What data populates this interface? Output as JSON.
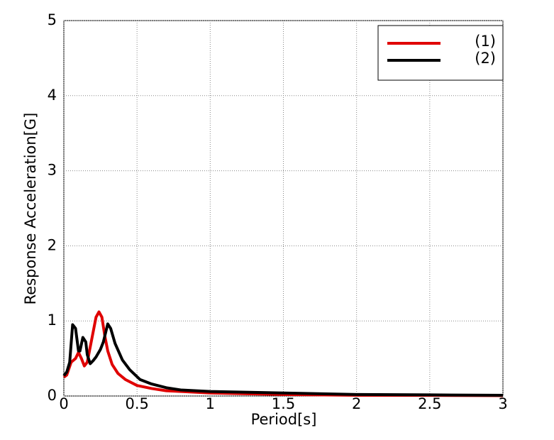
{
  "chart_data": {
    "type": "line",
    "x_label": "Period[s]",
    "y_label": "Response Acceleration[G]",
    "xlim": [
      0,
      3
    ],
    "ylim": [
      0,
      5
    ],
    "xticks": [
      0,
      0.5,
      1,
      1.5,
      2,
      2.5,
      3
    ],
    "yticks": [
      0,
      1,
      2,
      3,
      4,
      5
    ],
    "grid": true,
    "legend": "upper right",
    "series": [
      {
        "name": "(1)",
        "color": "#e00000",
        "x": [
          0,
          0.02,
          0.05,
          0.08,
          0.1,
          0.12,
          0.14,
          0.16,
          0.19,
          0.22,
          0.24,
          0.26,
          0.28,
          0.3,
          0.33,
          0.37,
          0.42,
          0.5,
          0.6,
          0.7,
          0.8,
          1.0,
          1.25,
          1.5,
          2.0,
          2.5,
          3.0
        ],
        "values": [
          0.25,
          0.28,
          0.45,
          0.5,
          0.58,
          0.5,
          0.4,
          0.45,
          0.75,
          1.05,
          1.12,
          1.05,
          0.8,
          0.6,
          0.42,
          0.3,
          0.22,
          0.14,
          0.1,
          0.07,
          0.06,
          0.04,
          0.03,
          0.02,
          0.01,
          0.008,
          0.005
        ]
      },
      {
        "name": "(2)",
        "color": "#000000",
        "x": [
          0,
          0.02,
          0.04,
          0.06,
          0.08,
          0.1,
          0.11,
          0.13,
          0.15,
          0.16,
          0.18,
          0.2,
          0.22,
          0.25,
          0.27,
          0.3,
          0.32,
          0.35,
          0.4,
          0.45,
          0.52,
          0.6,
          0.7,
          0.8,
          1.0,
          1.5,
          2.0,
          2.5,
          3.0
        ],
        "values": [
          0.27,
          0.32,
          0.45,
          0.95,
          0.9,
          0.6,
          0.6,
          0.78,
          0.72,
          0.55,
          0.43,
          0.47,
          0.52,
          0.62,
          0.72,
          0.96,
          0.9,
          0.7,
          0.48,
          0.35,
          0.22,
          0.16,
          0.11,
          0.08,
          0.06,
          0.04,
          0.02,
          0.015,
          0.01
        ]
      }
    ]
  }
}
